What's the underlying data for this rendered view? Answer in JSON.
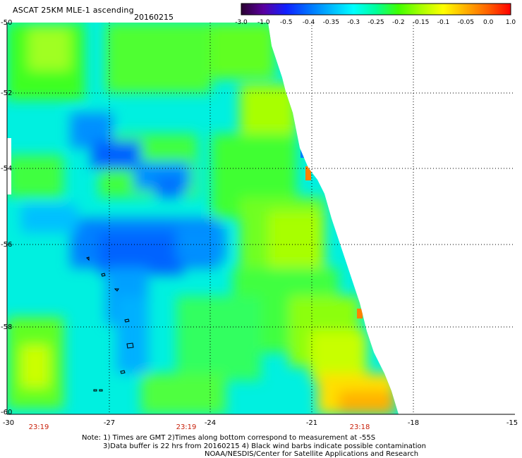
{
  "header": {
    "title": "ASCAT 25KM MLE-1 ascending",
    "date": "20160215"
  },
  "colorbar": {
    "labels": [
      "-3.0",
      "-1.0",
      "-0.5",
      "-0.4",
      "-0.35",
      "-0.3",
      "-0.25",
      "-0.2",
      "-0.15",
      "-0.1",
      "-0.05",
      "0.0",
      "1.0"
    ],
    "colors": [
      "#2a0030",
      "#5a00a0",
      "#1020ff",
      "#0070ff",
      "#00b8ff",
      "#00ffff",
      "#00ff9a",
      "#40ff00",
      "#a8ff00",
      "#ffff00",
      "#ffb000",
      "#ff6000",
      "#ff0000"
    ]
  },
  "map": {
    "lat_labels": [
      "-50",
      "-52",
      "-54",
      "-56",
      "-58",
      "-60"
    ],
    "lon_labels": [
      "-30",
      "-27",
      "-24",
      "-21",
      "-18",
      "-15"
    ],
    "time_labels": [
      "23:19",
      "23:19",
      "23:18"
    ]
  },
  "notes": {
    "line1": "Note: 1) Times are GMT 2)Times along bottom correspond to measurement at -55S",
    "line2": "3)Data buffer is 22 hrs from 20160215 4) Black wind barbs indicate possible contamination",
    "line3": "NOAA/NESDIS/Center for Satellite Applications and Research"
  }
}
